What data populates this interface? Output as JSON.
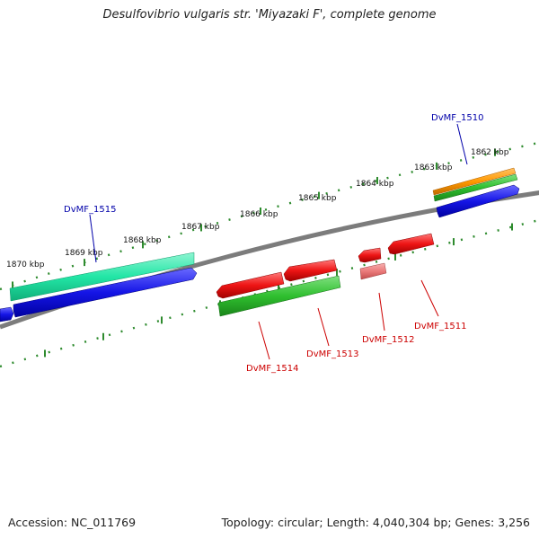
{
  "title": "Desulfovibrio vulgaris str. 'Miyazaki F', complete genome",
  "footer": {
    "accession": "Accession: NC_011769",
    "summary": "Topology: circular; Length: 4,040,304 bp; Genes: 3,256"
  },
  "ruler": {
    "ticks": [
      "1862 kbp",
      "1863 kbp",
      "1864 kbp",
      "1865 kbp",
      "1866 kbp",
      "1867 kbp",
      "1868 kbp",
      "1869 kbp",
      "1870 kbp"
    ]
  },
  "genes": {
    "forward": [
      "DvMF_1510",
      "DvMF_1515"
    ],
    "reverse": [
      "DvMF_1511",
      "DvMF_1512",
      "DvMF_1513",
      "DvMF_1514"
    ]
  },
  "colors": {
    "backbone": "#808080",
    "ruler": "#2e8b2e",
    "forward_label": "#0000aa",
    "reverse_label": "#cc0000",
    "cds_blue": "#1010e0",
    "gene_teal": "#1fe8a8",
    "gene_green": "#2fbf2f",
    "gene_orange": "#ff9900",
    "gene_red": "#ee1111",
    "gene_pink": "#ee7777"
  }
}
